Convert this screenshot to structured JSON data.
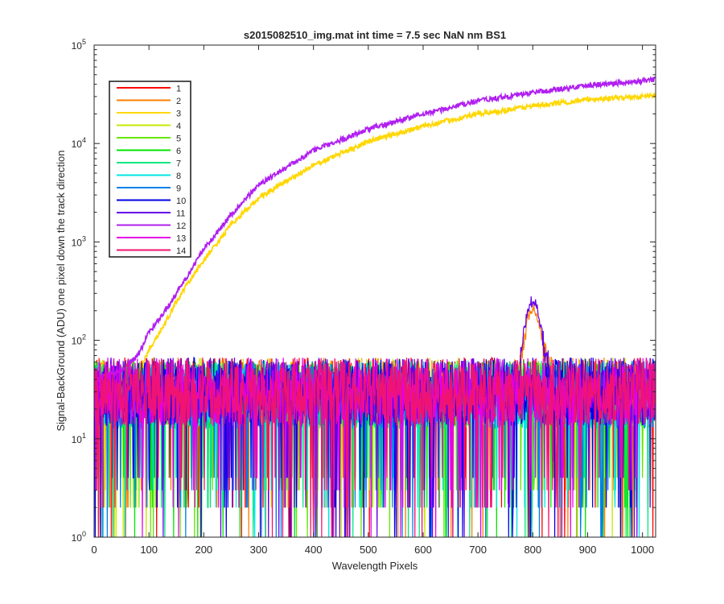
{
  "chart_data": {
    "type": "line",
    "title": "s2015082510_img.mat int time = 7.5 sec  NaN nm BS1",
    "xlabel": "Wavelength Pixels",
    "ylabel": "Signal-BackGround (ADU) one pixel down the track direction",
    "x_range": [
      0,
      1024
    ],
    "y_range": [
      1,
      100000
    ],
    "y_scale": "log",
    "x_ticks": [
      "0",
      "100",
      "200",
      "300",
      "400",
      "500",
      "600",
      "700",
      "800",
      "900",
      "1000"
    ],
    "y_ticks": [
      {
        "base": "10",
        "exp": "0"
      },
      {
        "base": "10",
        "exp": "1"
      },
      {
        "base": "10",
        "exp": "2"
      },
      {
        "base": "10",
        "exp": "3"
      },
      {
        "base": "10",
        "exp": "4"
      },
      {
        "base": "10",
        "exp": "5"
      }
    ],
    "grid": false,
    "legend_position": "top-left",
    "series": [
      {
        "name": "1",
        "color": "#ff0000",
        "kind": "noise",
        "level": 30,
        "peak": 0
      },
      {
        "name": "2",
        "color": "#ff7f00",
        "kind": "noise",
        "level": 30,
        "peak": 175
      },
      {
        "name": "3",
        "color": "#ffd700",
        "kind": "rising",
        "points": [
          [
            0,
            30
          ],
          [
            50,
            35
          ],
          [
            70,
            45
          ],
          [
            90,
            60
          ],
          [
            100,
            80
          ],
          [
            130,
            150
          ],
          [
            150,
            250
          ],
          [
            180,
            450
          ],
          [
            200,
            650
          ],
          [
            250,
            1500
          ],
          [
            300,
            2800
          ],
          [
            400,
            6000
          ],
          [
            500,
            10500
          ],
          [
            600,
            15000
          ],
          [
            700,
            20000
          ],
          [
            800,
            24000
          ],
          [
            900,
            28000
          ],
          [
            1000,
            30000
          ],
          [
            1024,
            31000
          ]
        ]
      },
      {
        "name": "4",
        "color": "#c8e800",
        "kind": "noise",
        "level": 30,
        "peak": 0
      },
      {
        "name": "5",
        "color": "#66e600",
        "kind": "noise",
        "level": 28,
        "peak": 0
      },
      {
        "name": "6",
        "color": "#00e600",
        "kind": "noise",
        "level": 28,
        "peak": 0
      },
      {
        "name": "7",
        "color": "#00e680",
        "kind": "noise",
        "level": 28,
        "peak": 0
      },
      {
        "name": "8",
        "color": "#00e6e6",
        "kind": "noise",
        "level": 28,
        "peak": 0
      },
      {
        "name": "9",
        "color": "#0080e6",
        "kind": "noise",
        "level": 28,
        "peak": 0
      },
      {
        "name": "10",
        "color": "#0000e6",
        "kind": "noise",
        "level": 30,
        "peak": 0
      },
      {
        "name": "11",
        "color": "#6600e6",
        "kind": "noise",
        "level": 30,
        "peak": 220
      },
      {
        "name": "12",
        "color": "#b020f0",
        "kind": "rising",
        "points": [
          [
            0,
            40
          ],
          [
            50,
            50
          ],
          [
            80,
            70
          ],
          [
            100,
            120
          ],
          [
            130,
            200
          ],
          [
            150,
            300
          ],
          [
            180,
            550
          ],
          [
            200,
            850
          ],
          [
            250,
            1900
          ],
          [
            300,
            3800
          ],
          [
            400,
            8500
          ],
          [
            500,
            14000
          ],
          [
            600,
            20000
          ],
          [
            700,
            27000
          ],
          [
            800,
            33000
          ],
          [
            900,
            39000
          ],
          [
            1000,
            43000
          ],
          [
            1024,
            45000
          ]
        ]
      },
      {
        "name": "13",
        "color": "#e600e6",
        "kind": "noise",
        "level": 30,
        "peak": 0
      },
      {
        "name": "14",
        "color": "#f01470",
        "kind": "noise",
        "level": 30,
        "peak": 0
      }
    ]
  }
}
